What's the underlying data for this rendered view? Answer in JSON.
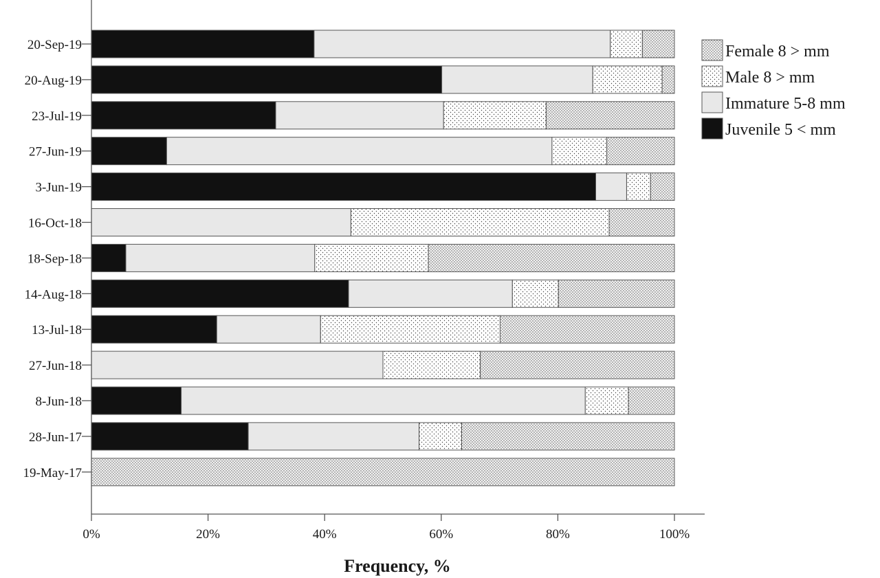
{
  "chart_data": {
    "type": "bar",
    "orientation": "horizontal",
    "stacked": true,
    "xlabel": "Frequency, %",
    "xlim": [
      0,
      100
    ],
    "xticks": [
      "0%",
      "20%",
      "40%",
      "60%",
      "80%",
      "100%"
    ],
    "categories": [
      "20-Sep-19",
      "20-Aug-19",
      "23-Jul-19",
      "27-Jun-19",
      "3-Jun-19",
      "16-Oct-18",
      "18-Sep-18",
      "14-Aug-18",
      "13-Jul-18",
      "27-Jun-18",
      "8-Jun-18",
      "28-Jun-17",
      "19-May-17"
    ],
    "series": [
      {
        "name": "Juvenile 5 < mm",
        "color": "#111111",
        "pattern": "solid",
        "values": [
          38.2,
          60.1,
          31.6,
          12.9,
          86.5,
          0,
          5.9,
          44.1,
          21.5,
          0,
          15.4,
          26.9,
          0
        ]
      },
      {
        "name": "Immature 5-8 mm",
        "color": "#e8e8e8",
        "pattern": "solid",
        "values": [
          50.8,
          25.9,
          28.8,
          66.1,
          5.3,
          44.5,
          32.4,
          28.1,
          17.8,
          50.0,
          69.3,
          29.3,
          0
        ]
      },
      {
        "name": "Male 8 > mm",
        "color": "#ffffff",
        "pattern": "sparse-dots",
        "values": [
          5.5,
          11.9,
          17.6,
          9.4,
          4.1,
          44.3,
          19.5,
          7.9,
          30.8,
          16.7,
          7.4,
          7.3,
          0
        ]
      },
      {
        "name": "Female 8 > mm",
        "color": "#f0f0f0",
        "pattern": "dense-dots",
        "values": [
          5.5,
          2.1,
          22.0,
          11.6,
          4.1,
          11.2,
          42.2,
          19.9,
          29.9,
          33.3,
          7.9,
          36.5,
          100
        ]
      }
    ],
    "legend_position": "top-right",
    "legend_order": [
      "Female 8 > mm",
      "Male 8 > mm",
      "Immature 5-8 mm",
      "Juvenile 5 < mm"
    ],
    "grid": false
  }
}
